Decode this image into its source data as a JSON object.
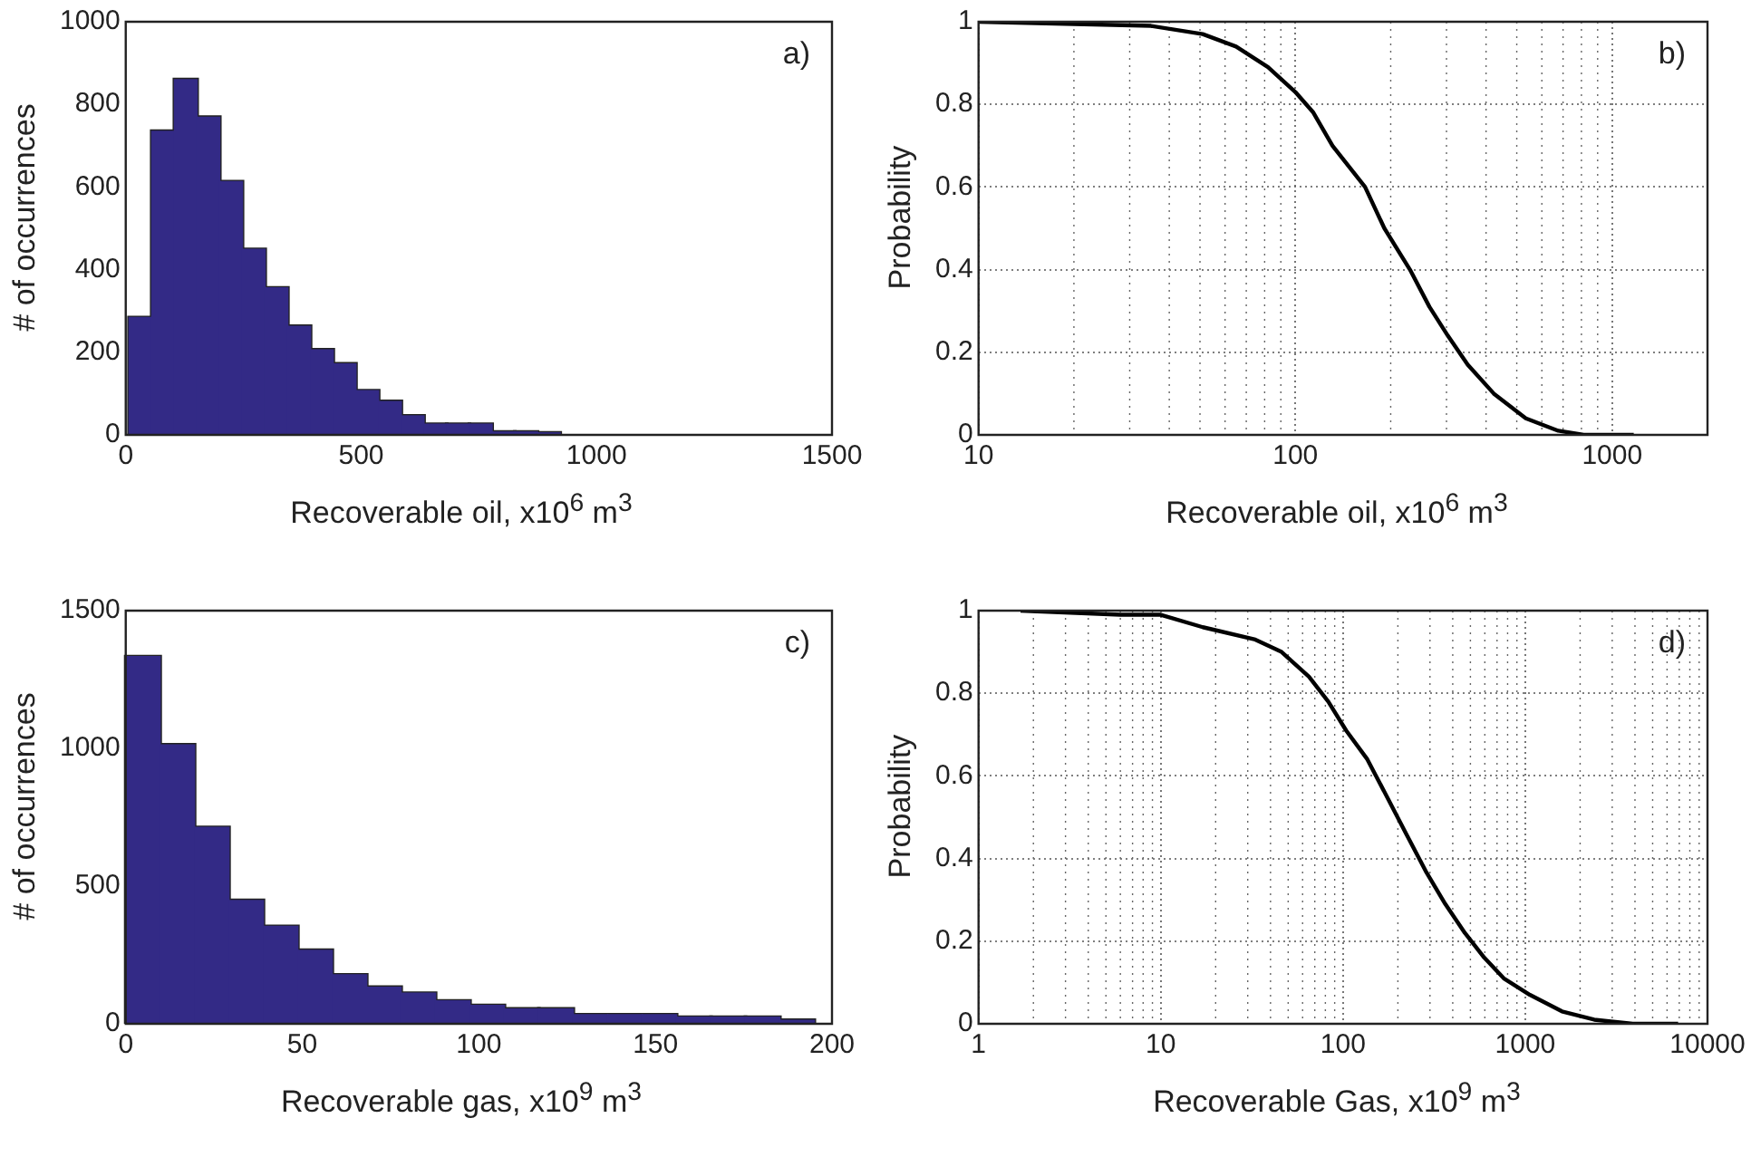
{
  "chart_data": [
    {
      "type": "histogram",
      "xlabel": "Recoverable oil, x10$^{6}$ m$^{3}$",
      "ylabel": "# of occurrences",
      "annotations": [
        "a)"
      ],
      "color": "#332a86",
      "bins": [
        7,
        55.2,
        103.4,
        151.6,
        199.8,
        248,
        296.2,
        344.4,
        392.6,
        440.8,
        489,
        537.2,
        585.4,
        633.6,
        681.8,
        730,
        778.2,
        826.4,
        874.6,
        922.8
      ],
      "values": [
        284,
        735,
        860,
        769,
        613,
        449,
        356,
        263,
        206,
        172,
        107,
        81,
        46,
        26,
        26,
        26,
        7,
        7,
        5
      ],
      "xlim": [
        0,
        1500
      ],
      "xticks": [
        0,
        500,
        1000,
        1500
      ],
      "ylim": [
        0,
        1000
      ],
      "yticks": [
        0,
        200,
        400,
        600,
        800,
        1000
      ]
    },
    {
      "type": "line",
      "xlabel": "Recoverable oil, x10$^{6}$ m$^{3}$",
      "ylabel": "Probability",
      "annotations": [
        "b)"
      ],
      "color": "#000000",
      "log": "x",
      "grid": true,
      "x": [
        10,
        35,
        51,
        65,
        82,
        100,
        114,
        131,
        166,
        191,
        230,
        265,
        303,
        350,
        423,
        534,
        676,
        813,
        1170
      ],
      "values": [
        1,
        0.99,
        0.97,
        0.94,
        0.89,
        0.83,
        0.78,
        0.7,
        0.6,
        0.5,
        0.4,
        0.31,
        0.24,
        0.17,
        0.1,
        0.04,
        0.01,
        0,
        0
      ],
      "xlim": [
        10,
        2000
      ],
      "xticks": [
        10,
        100,
        1000
      ],
      "ylim": [
        0,
        1
      ],
      "yticks": [
        0,
        0.2,
        0.4,
        0.6,
        0.8,
        1
      ]
    },
    {
      "type": "histogram",
      "xlabel": "Recoverable gas, x10$^{9}$ m$^{3}$",
      "ylabel": "# of occurrences",
      "annotations": [
        "c)"
      ],
      "color": "#332a86",
      "bins": [
        0,
        9.75,
        19.5,
        29.25,
        39,
        48.75,
        58.5,
        68.25,
        78,
        87.75,
        97.5,
        107.25,
        117,
        126.75,
        136.5,
        146.25,
        156,
        165.75,
        175.5,
        185.25,
        195
      ],
      "values": [
        1333,
        1013,
        713,
        448,
        354,
        267,
        178,
        133,
        111,
        83,
        67,
        54,
        54,
        33,
        33,
        33,
        24,
        24,
        24,
        13
      ],
      "xlim": [
        0,
        200
      ],
      "xticks": [
        0,
        50,
        100,
        150,
        200
      ],
      "ylim": [
        0,
        1500
      ],
      "yticks": [
        0,
        500,
        1000,
        1500
      ]
    },
    {
      "type": "line",
      "xlabel": "Recoverable Gas, x10$^{9}$ m$^{3}$",
      "ylabel": "Probability",
      "annotations": [
        "d)"
      ],
      "color": "#000000",
      "log": "x",
      "grid": true,
      "x": [
        1.7,
        6,
        10,
        17,
        33,
        46,
        65,
        83,
        104,
        136,
        174,
        222,
        284,
        364,
        466,
        596,
        762,
        1060,
        1590,
        2390,
        3890,
        6900
      ],
      "values": [
        1,
        0.99,
        0.99,
        0.96,
        0.93,
        0.9,
        0.84,
        0.78,
        0.71,
        0.64,
        0.55,
        0.46,
        0.37,
        0.29,
        0.22,
        0.16,
        0.11,
        0.07,
        0.03,
        0.01,
        0,
        0
      ],
      "xlim": [
        1,
        10000
      ],
      "xticks": [
        1,
        10,
        100,
        1000,
        10000
      ],
      "ylim": [
        0,
        1
      ],
      "yticks": [
        0,
        0.2,
        0.4,
        0.6,
        0.8,
        1
      ]
    }
  ]
}
